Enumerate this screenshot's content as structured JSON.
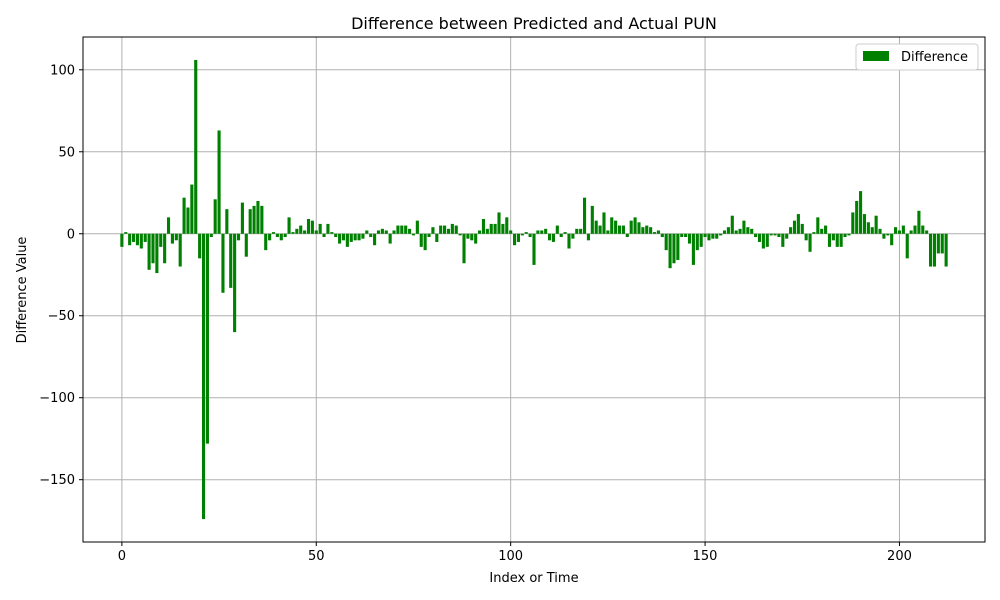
{
  "chart_data": {
    "type": "bar",
    "title": "Difference between Predicted and Actual PUN",
    "xlabel": "Index or Time",
    "ylabel": "Difference Value",
    "xlim": [
      -10,
      222
    ],
    "ylim": [
      -188,
      120
    ],
    "xticks": [
      0,
      50,
      100,
      150,
      200
    ],
    "yticks": [
      -150,
      -100,
      -50,
      0,
      50,
      100
    ],
    "xtick_labels": [
      "0",
      "50",
      "100",
      "150",
      "200"
    ],
    "ytick_labels": [
      "−150",
      "−100",
      "−50",
      "0",
      "50",
      "100"
    ],
    "grid": true,
    "legend_position": "top-right",
    "series": [
      {
        "name": "Difference",
        "color": "#008000",
        "x": [
          0,
          1,
          2,
          3,
          4,
          5,
          6,
          7,
          8,
          9,
          10,
          11,
          12,
          13,
          14,
          15,
          16,
          17,
          18,
          19,
          20,
          21,
          22,
          23,
          24,
          25,
          26,
          27,
          28,
          29,
          30,
          31,
          32,
          33,
          34,
          35,
          36,
          37,
          38,
          39,
          40,
          41,
          42,
          43,
          44,
          45,
          46,
          47,
          48,
          49,
          50,
          51,
          52,
          53,
          54,
          55,
          56,
          57,
          58,
          59,
          60,
          61,
          62,
          63,
          64,
          65,
          66,
          67,
          68,
          69,
          70,
          71,
          72,
          73,
          74,
          75,
          76,
          77,
          78,
          79,
          80,
          81,
          82,
          83,
          84,
          85,
          86,
          87,
          88,
          89,
          90,
          91,
          92,
          93,
          94,
          95,
          96,
          97,
          98,
          99,
          100,
          101,
          102,
          103,
          104,
          105,
          106,
          107,
          108,
          109,
          110,
          111,
          112,
          113,
          114,
          115,
          116,
          117,
          118,
          119,
          120,
          121,
          122,
          123,
          124,
          125,
          126,
          127,
          128,
          129,
          130,
          131,
          132,
          133,
          134,
          135,
          136,
          137,
          138,
          139,
          140,
          141,
          142,
          143,
          144,
          145,
          146,
          147,
          148,
          149,
          150,
          151,
          152,
          153,
          154,
          155,
          156,
          157,
          158,
          159,
          160,
          161,
          162,
          163,
          164,
          165,
          166,
          167,
          168,
          169,
          170,
          171,
          172,
          173,
          174,
          175,
          176,
          177,
          178,
          179,
          180,
          181,
          182,
          183,
          184,
          185,
          186,
          187,
          188,
          189,
          190,
          191,
          192,
          193,
          194,
          195,
          196,
          197,
          198,
          199,
          200,
          201,
          202,
          203,
          204,
          205,
          206,
          207,
          208,
          209,
          210,
          211,
          212
        ],
        "values": [
          -8,
          1,
          -7,
          -5,
          -7,
          -9,
          -5,
          -22,
          -18,
          -24,
          -8,
          -18,
          10,
          -6,
          -4,
          -20,
          22,
          16,
          30,
          106,
          -15,
          -174,
          -128,
          -2,
          21,
          63,
          -36,
          15,
          -33,
          -60,
          -4,
          19,
          -14,
          15,
          17,
          20,
          17,
          -10,
          -4,
          1,
          -2,
          -4,
          -2,
          10,
          1,
          3,
          5,
          2,
          9,
          8,
          2,
          6,
          -2,
          6,
          1,
          -2,
          -6,
          -4,
          -8,
          -5,
          -4,
          -4,
          -3,
          2,
          -2,
          -7,
          2,
          3,
          2,
          -6,
          2,
          5,
          5,
          5,
          3,
          -1,
          8,
          -8,
          -10,
          -2,
          4,
          -5,
          5,
          5,
          3,
          6,
          5,
          -1,
          -18,
          -3,
          -4,
          -6,
          2,
          9,
          3,
          6,
          6,
          13,
          6,
          10,
          2,
          -7,
          -5,
          -1,
          1,
          -2,
          -19,
          2,
          2,
          3,
          -4,
          -5,
          5,
          -2,
          1,
          -9,
          -3,
          3,
          3,
          22,
          -4,
          17,
          8,
          5,
          13,
          2,
          10,
          8,
          5,
          5,
          -2,
          8,
          10,
          7,
          4,
          5,
          4,
          1,
          2,
          -2,
          -10,
          -21,
          -18,
          -16,
          -2,
          -2,
          -6,
          -19,
          -10,
          -8,
          -2,
          -4,
          -3,
          -3,
          -1,
          2,
          4,
          11,
          2,
          3,
          8,
          4,
          3,
          -2,
          -5,
          -9,
          -8,
          -1,
          -1,
          -2,
          -8,
          -3,
          4,
          8,
          12,
          6,
          -4,
          -11,
          1,
          10,
          3,
          5,
          -8,
          -4,
          -8,
          -8,
          -2,
          -1,
          13,
          20,
          26,
          12,
          7,
          4,
          11,
          3,
          -3,
          -1,
          -7,
          4,
          2,
          5,
          -15,
          2,
          5,
          14,
          5,
          2,
          -20,
          -20,
          -12,
          -12,
          -20
        ]
      }
    ]
  }
}
